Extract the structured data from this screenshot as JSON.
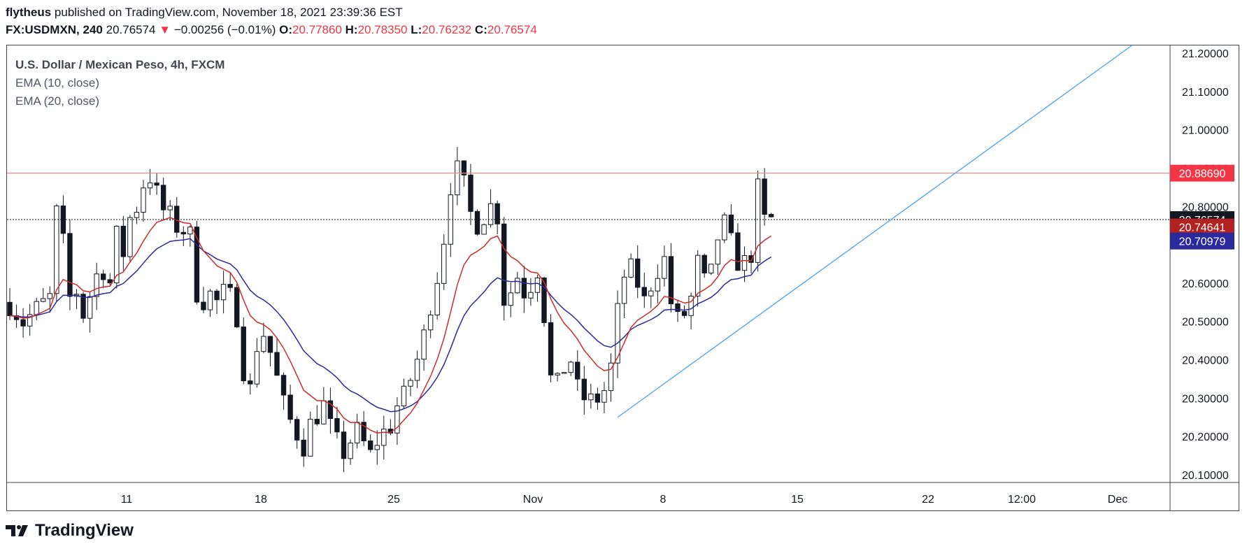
{
  "header": {
    "publisher": "flytheus",
    "published_text": "published on TradingView.com, November 18, 2021 23:39:36 EST",
    "symbol": "FX:USDMXN, 240",
    "last": "20.76574",
    "change": "−0.00256 (−0.01%)",
    "o_label": "O:",
    "o_value": "20.77860",
    "h_label": "H:",
    "h_value": "20.78350",
    "l_label": "L:",
    "l_value": "20.76232",
    "c_label": "C:",
    "c_value": "20.76574"
  },
  "legend": {
    "title": "U.S. Dollar / Mexican Peso, 4h, FXCM",
    "ema10": "EMA (10, close)",
    "ema20": "EMA (20, close)"
  },
  "footer": {
    "brand": "TradingView"
  },
  "colors": {
    "ema10": "#cc2b2b",
    "ema20": "#2a2a9c",
    "trendline": "#4aa3e8",
    "resistance": "#f28b82",
    "price_badge": "#131722",
    "res_badge": "#f23645"
  },
  "chart_data": {
    "type": "candlestick",
    "title": "U.S. Dollar / Mexican Peso, 4h, FXCM",
    "ylim": [
      20.08,
      21.22
    ],
    "y_ticks": [
      "20.10000",
      "20.20000",
      "20.30000",
      "20.40000",
      "20.50000",
      "20.60000",
      "20.70000",
      "20.80000",
      "20.90000",
      "21.00000",
      "21.10000",
      "21.20000"
    ],
    "x_ticks": [
      "11",
      "18",
      "25",
      "Nov",
      "8",
      "15",
      "22",
      "12:00",
      "Dec"
    ],
    "series": [
      {
        "name": "USDMXN",
        "type": "candles",
        "close_path": [
          [
            0,
            20.55
          ],
          [
            2,
            20.5
          ],
          [
            4,
            20.53
          ],
          [
            6,
            20.56
          ],
          [
            7,
            20.78
          ],
          [
            8,
            20.7
          ],
          [
            9,
            20.56
          ],
          [
            10,
            20.58
          ],
          [
            11,
            20.52
          ],
          [
            12,
            20.57
          ],
          [
            13,
            20.62
          ],
          [
            14,
            20.64
          ],
          [
            15,
            20.6
          ],
          [
            16,
            20.72
          ],
          [
            17,
            20.68
          ],
          [
            18,
            20.77
          ],
          [
            19,
            20.8
          ],
          [
            20,
            20.86
          ],
          [
            21,
            20.88
          ],
          [
            22,
            20.83
          ],
          [
            23,
            20.79
          ],
          [
            24,
            20.77
          ],
          [
            25,
            20.75
          ],
          [
            26,
            20.74
          ],
          [
            27,
            20.72
          ],
          [
            28,
            20.58
          ],
          [
            29,
            20.56
          ],
          [
            30,
            20.57
          ],
          [
            31,
            20.55
          ],
          [
            32,
            20.57
          ],
          [
            33,
            20.56
          ],
          [
            34,
            20.52
          ],
          [
            35,
            20.38
          ],
          [
            36,
            20.32
          ],
          [
            37,
            20.44
          ],
          [
            38,
            20.47
          ],
          [
            39,
            20.42
          ],
          [
            40,
            20.35
          ],
          [
            41,
            20.28
          ],
          [
            42,
            20.24
          ],
          [
            43,
            20.21
          ],
          [
            44,
            20.18
          ],
          [
            45,
            20.23
          ],
          [
            46,
            20.26
          ],
          [
            47,
            20.28
          ],
          [
            48,
            20.22
          ],
          [
            49,
            20.18
          ],
          [
            50,
            20.16
          ],
          [
            51,
            20.19
          ],
          [
            52,
            20.21
          ],
          [
            53,
            20.18
          ],
          [
            54,
            20.15
          ],
          [
            55,
            20.19
          ],
          [
            56,
            20.21
          ],
          [
            57,
            20.23
          ],
          [
            58,
            20.28
          ],
          [
            59,
            20.3
          ],
          [
            60,
            20.35
          ],
          [
            61,
            20.4
          ],
          [
            62,
            20.46
          ],
          [
            63,
            20.55
          ],
          [
            64,
            20.62
          ],
          [
            65,
            20.72
          ],
          [
            66,
            20.86
          ],
          [
            67,
            20.89
          ],
          [
            68,
            20.85
          ],
          [
            69,
            20.78
          ],
          [
            70,
            20.76
          ],
          [
            71,
            20.78
          ],
          [
            72,
            20.8
          ],
          [
            73,
            20.78
          ],
          [
            74,
            20.56
          ],
          [
            75,
            20.58
          ],
          [
            76,
            20.62
          ],
          [
            77,
            20.58
          ],
          [
            78,
            20.6
          ],
          [
            79,
            20.64
          ],
          [
            80,
            20.52
          ],
          [
            81,
            20.35
          ],
          [
            82,
            20.33
          ],
          [
            83,
            20.38
          ],
          [
            84,
            20.4
          ],
          [
            85,
            20.32
          ],
          [
            86,
            20.3
          ],
          [
            87,
            20.29
          ],
          [
            88,
            20.3
          ],
          [
            89,
            20.32
          ],
          [
            90,
            20.38
          ],
          [
            91,
            20.52
          ],
          [
            92,
            20.62
          ],
          [
            93,
            20.63
          ],
          [
            94,
            20.6
          ],
          [
            95,
            20.55
          ],
          [
            96,
            20.6
          ],
          [
            97,
            20.64
          ],
          [
            98,
            20.66
          ],
          [
            99,
            20.55
          ],
          [
            100,
            20.5
          ],
          [
            101,
            20.52
          ],
          [
            102,
            20.56
          ],
          [
            103,
            20.65
          ],
          [
            104,
            20.6
          ],
          [
            105,
            20.62
          ],
          [
            106,
            20.72
          ],
          [
            107,
            20.75
          ],
          [
            108,
            20.7
          ],
          [
            109,
            20.66
          ],
          [
            110,
            20.65
          ],
          [
            111,
            20.68
          ],
          [
            112,
            20.84
          ],
          [
            113,
            20.76
          ],
          [
            114,
            20.766
          ]
        ]
      },
      {
        "name": "EMA (10, close)",
        "type": "line"
      },
      {
        "name": "EMA (20, close)",
        "type": "line"
      }
    ],
    "levels": {
      "resistance": 20.8869,
      "resistance_label": "20.88690",
      "last_price": 20.76574,
      "last_label": "20.76574",
      "ema10_value": 20.74641,
      "ema10_label": "20.74641",
      "ema20_value": 20.70979,
      "ema20_label": "20.70979"
    },
    "trendline": {
      "start": [
        91,
        20.25
      ],
      "end": [
        168,
        21.22
      ]
    }
  }
}
